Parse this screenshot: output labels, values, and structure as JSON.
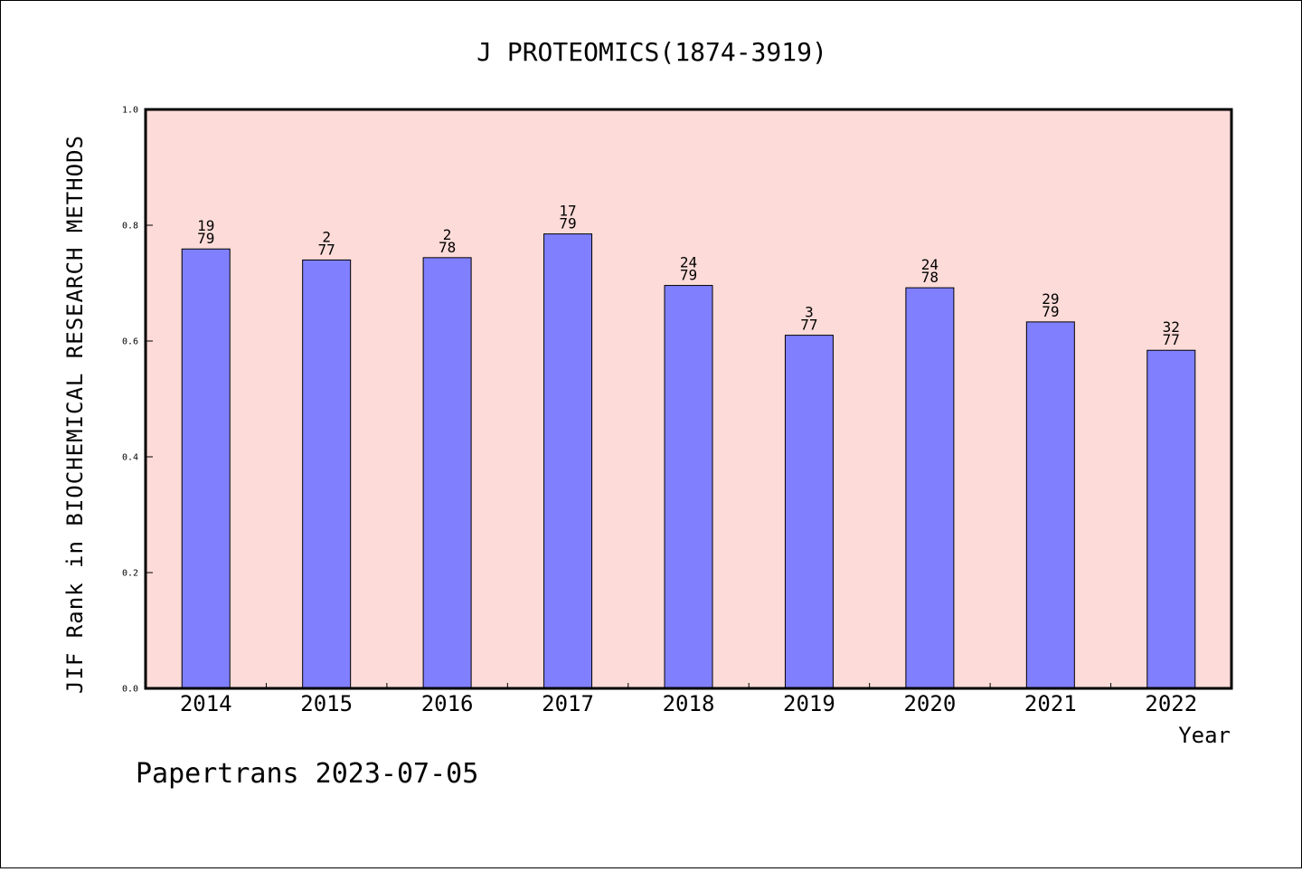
{
  "chart_data": {
    "type": "bar",
    "title": "J PROTEOMICS(1874-3919)",
    "xlabel": "Year",
    "ylabel": "JIF Rank in BIOCHEMICAL RESEARCH METHODS",
    "ylim": [
      0,
      1.0
    ],
    "yticks": [
      "0.0",
      "0.2",
      "0.4",
      "0.6",
      "0.8",
      "1.0"
    ],
    "categories": [
      "2014",
      "2015",
      "2016",
      "2017",
      "2018",
      "2019",
      "2020",
      "2021",
      "2022"
    ],
    "values": [
      0.759,
      0.74,
      0.744,
      0.785,
      0.696,
      0.61,
      0.692,
      0.633,
      0.584
    ],
    "rank_labels": [
      "19",
      "2",
      "2",
      "17",
      "24",
      "3",
      "24",
      "29",
      "32"
    ],
    "total_labels": [
      "79",
      "77",
      "78",
      "79",
      "79",
      "77",
      "78",
      "79",
      "77"
    ],
    "colors": {
      "plot_background": "#fddbd8",
      "bar_fill": "#8080ff",
      "bar_edge": "#000000"
    }
  },
  "footer": "Papertrans 2023-07-05"
}
